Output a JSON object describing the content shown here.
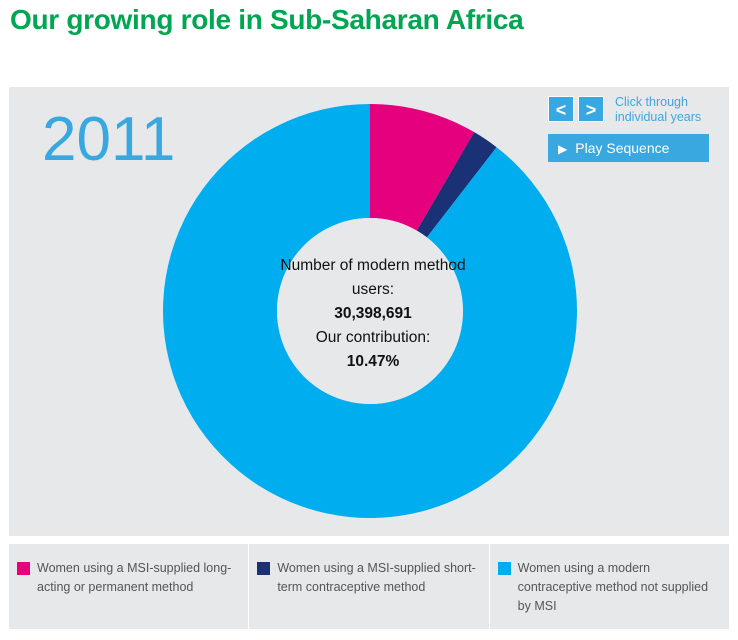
{
  "title": "Our growing role in Sub-Saharan Africa",
  "year": "2011",
  "controls": {
    "prev_label": "<",
    "next_label": ">",
    "hint": "Click through individual years",
    "play_label": "Play Sequence",
    "play_icon": "play-triangle-icon"
  },
  "center": {
    "users_label": "Number of modern method users:",
    "users_value": "30,398,691",
    "contribution_label": "Our contribution:",
    "contribution_value": "10.47%"
  },
  "colors": {
    "title": "#00a651",
    "accent": "#3aa8e0",
    "pink": "#e5007e",
    "navy": "#1a3275",
    "cyan": "#00aeef",
    "panel": "#e7e8ea"
  },
  "chart_data": {
    "type": "pie",
    "variant": "donut",
    "title": "Our growing role in Sub-Saharan Africa",
    "year": "2011",
    "unit": "%",
    "series": [
      {
        "name": "Women using a MSI-supplied long-acting or permanent method",
        "value": 8.4,
        "color": "#e5007e"
      },
      {
        "name": "Women using a MSI-supplied short-term contraceptive method",
        "value": 2.07,
        "color": "#1a3275"
      },
      {
        "name": "Women using a modern contraceptive method not supplied by MSI",
        "value": 89.53,
        "color": "#00aeef"
      }
    ],
    "legend_position": "bottom"
  }
}
